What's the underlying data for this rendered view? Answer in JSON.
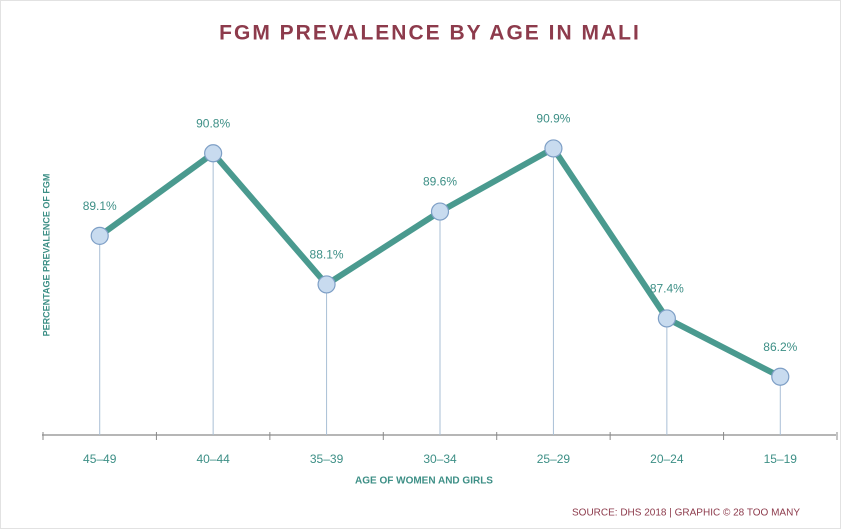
{
  "chart_data": {
    "type": "line",
    "title": "FGM PREVALENCE BY AGE IN MALI",
    "x_label": "AGE OF WOMEN AND GIRLS",
    "y_label": "PERCENTAGE PREVALENCE OF FGM",
    "source": "SOURCE: DHS 2018 | GRAPHIC © 28 TOO MANY",
    "categories": [
      "45–49",
      "40–44",
      "35–39",
      "30–34",
      "25–29",
      "20–24",
      "15–19"
    ],
    "series": [
      {
        "name": "FGM prevalence",
        "color": "#4a9a8f",
        "values": [
          89.1,
          90.8,
          88.1,
          89.6,
          90.9,
          87.4,
          86.2
        ],
        "value_labels": [
          "89.1%",
          "90.8%",
          "88.1%",
          "89.6%",
          "90.9%",
          "87.4%",
          "86.2%"
        ]
      }
    ],
    "marker_color": "#c8dbef",
    "ylim": [
      85,
      92
    ]
  }
}
